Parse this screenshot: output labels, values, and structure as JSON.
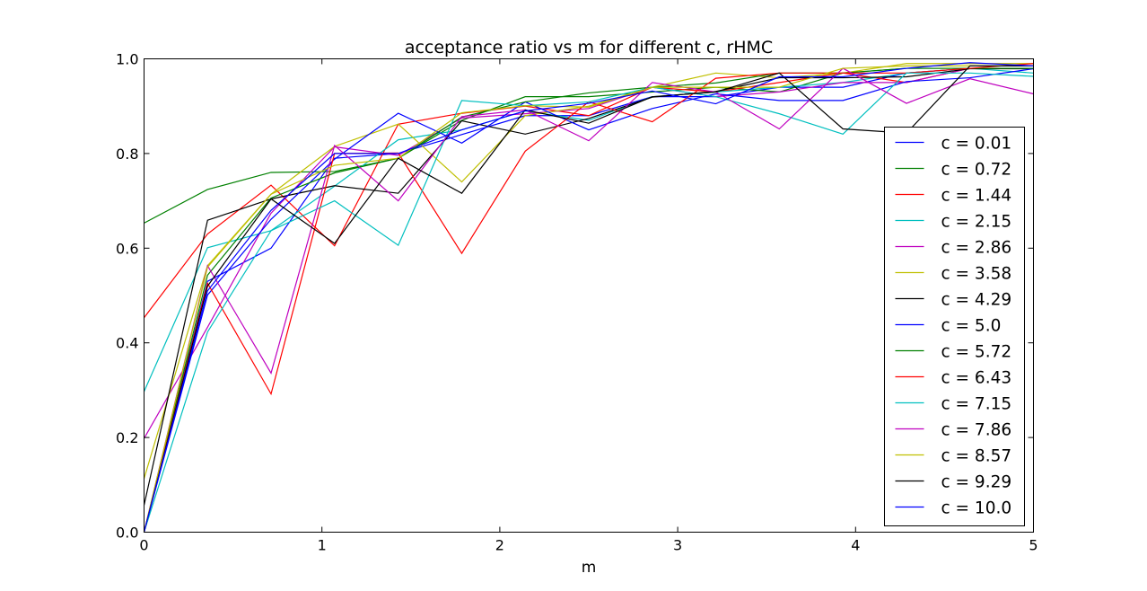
{
  "chart_data": {
    "type": "line",
    "title": "acceptance ratio vs m for different c, rHMC",
    "xlabel": "m",
    "ylabel": "",
    "xlim": [
      0,
      5
    ],
    "ylim": [
      0,
      1.0
    ],
    "x_ticks": [
      "0",
      "1",
      "2",
      "3",
      "4",
      "5"
    ],
    "y_ticks": [
      "0.0",
      "0.2",
      "0.4",
      "0.6",
      "0.8",
      "1.0"
    ],
    "grid": false,
    "legend_position": "right",
    "x": [
      0,
      0.357,
      0.714,
      1.071,
      1.429,
      1.786,
      2.143,
      2.5,
      2.857,
      3.214,
      3.571,
      3.929,
      4.286,
      4.643,
      5.0
    ],
    "series": [
      {
        "name": "c = 0.01",
        "color": "#0000ff",
        "values": [
          0.0,
          0.53,
          0.6,
          0.79,
          0.8,
          0.84,
          0.88,
          0.88,
          0.92,
          0.92,
          0.94,
          0.94,
          0.97,
          0.98,
          0.98
        ]
      },
      {
        "name": "c = 0.72",
        "color": "#008000",
        "values": [
          0.653,
          0.724,
          0.76,
          0.762,
          0.79,
          0.87,
          0.92,
          0.92,
          0.93,
          0.94,
          0.93,
          0.97,
          0.98,
          0.98,
          0.98
        ]
      },
      {
        "name": "c = 1.44",
        "color": "#ff0000",
        "values": [
          0.453,
          0.63,
          0.733,
          0.605,
          0.862,
          0.885,
          0.9,
          0.88,
          0.94,
          0.93,
          0.95,
          0.97,
          0.95,
          0.98,
          0.98
        ]
      },
      {
        "name": "c = 2.15",
        "color": "#00bfbf",
        "values": [
          0.297,
          0.601,
          0.637,
          0.731,
          0.829,
          0.85,
          0.89,
          0.87,
          0.92,
          0.93,
          0.94,
          0.95,
          0.97,
          0.98,
          0.97
        ]
      },
      {
        "name": "c = 2.86",
        "color": "#bf00bf",
        "values": [
          0.198,
          0.433,
          0.674,
          0.814,
          0.796,
          0.875,
          0.884,
          0.895,
          0.94,
          0.92,
          0.93,
          0.95,
          0.95,
          0.98,
          0.98
        ]
      },
      {
        "name": "c = 3.58",
        "color": "#bfbf00",
        "values": [
          0.113,
          0.563,
          0.714,
          0.815,
          0.862,
          0.74,
          0.88,
          0.9,
          0.94,
          0.97,
          0.96,
          0.97,
          0.99,
          0.99,
          0.99
        ]
      },
      {
        "name": "c = 4.29",
        "color": "#000000",
        "values": [
          0.057,
          0.659,
          0.704,
          0.732,
          0.716,
          0.869,
          0.841,
          0.874,
          0.919,
          0.931,
          0.96,
          0.96,
          0.962,
          0.979,
          0.979
        ]
      },
      {
        "name": "c = 5.0",
        "color": "#0000ff",
        "values": [
          0.0,
          0.501,
          0.661,
          0.788,
          0.885,
          0.822,
          0.909,
          0.85,
          0.895,
          0.926,
          0.912,
          0.912,
          0.952,
          0.96,
          0.979
        ]
      },
      {
        "name": "c = 5.72",
        "color": "#008000",
        "values": [
          0.0,
          0.543,
          0.706,
          0.759,
          0.79,
          0.877,
          0.909,
          0.928,
          0.94,
          0.949,
          0.97,
          0.97,
          0.98,
          0.98,
          0.98
        ]
      },
      {
        "name": "c = 6.43",
        "color": "#ff0000",
        "values": [
          0.0,
          0.526,
          0.292,
          0.8,
          0.801,
          0.589,
          0.805,
          0.909,
          0.867,
          0.959,
          0.97,
          0.97,
          0.97,
          0.98,
          0.99
        ]
      },
      {
        "name": "c = 7.15",
        "color": "#00bfbf",
        "values": [
          0.0,
          0.423,
          0.637,
          0.7,
          0.606,
          0.912,
          0.901,
          0.909,
          0.94,
          0.92,
          0.884,
          0.841,
          0.97,
          0.97,
          0.963
        ]
      },
      {
        "name": "c = 7.86",
        "color": "#bf00bf",
        "values": [
          0.0,
          0.563,
          0.336,
          0.817,
          0.7,
          0.878,
          0.892,
          0.827,
          0.95,
          0.93,
          0.852,
          0.98,
          0.906,
          0.958,
          0.926
        ]
      },
      {
        "name": "c = 8.57",
        "color": "#bfbf00",
        "values": [
          0.0,
          0.56,
          0.714,
          0.775,
          0.79,
          0.886,
          0.901,
          0.898,
          0.94,
          0.94,
          0.94,
          0.98,
          0.985,
          0.985,
          0.985
        ]
      },
      {
        "name": "c = 9.29",
        "color": "#000000",
        "values": [
          0.0,
          0.52,
          0.704,
          0.61,
          0.79,
          0.716,
          0.892,
          0.864,
          0.92,
          0.93,
          0.97,
          0.852,
          0.843,
          0.985,
          0.985
        ]
      },
      {
        "name": "c = 10.0",
        "color": "#0000ff",
        "values": [
          0.0,
          0.51,
          0.68,
          0.8,
          0.8,
          0.85,
          0.89,
          0.906,
          0.932,
          0.905,
          0.962,
          0.962,
          0.98,
          0.992,
          0.985
        ]
      }
    ]
  }
}
